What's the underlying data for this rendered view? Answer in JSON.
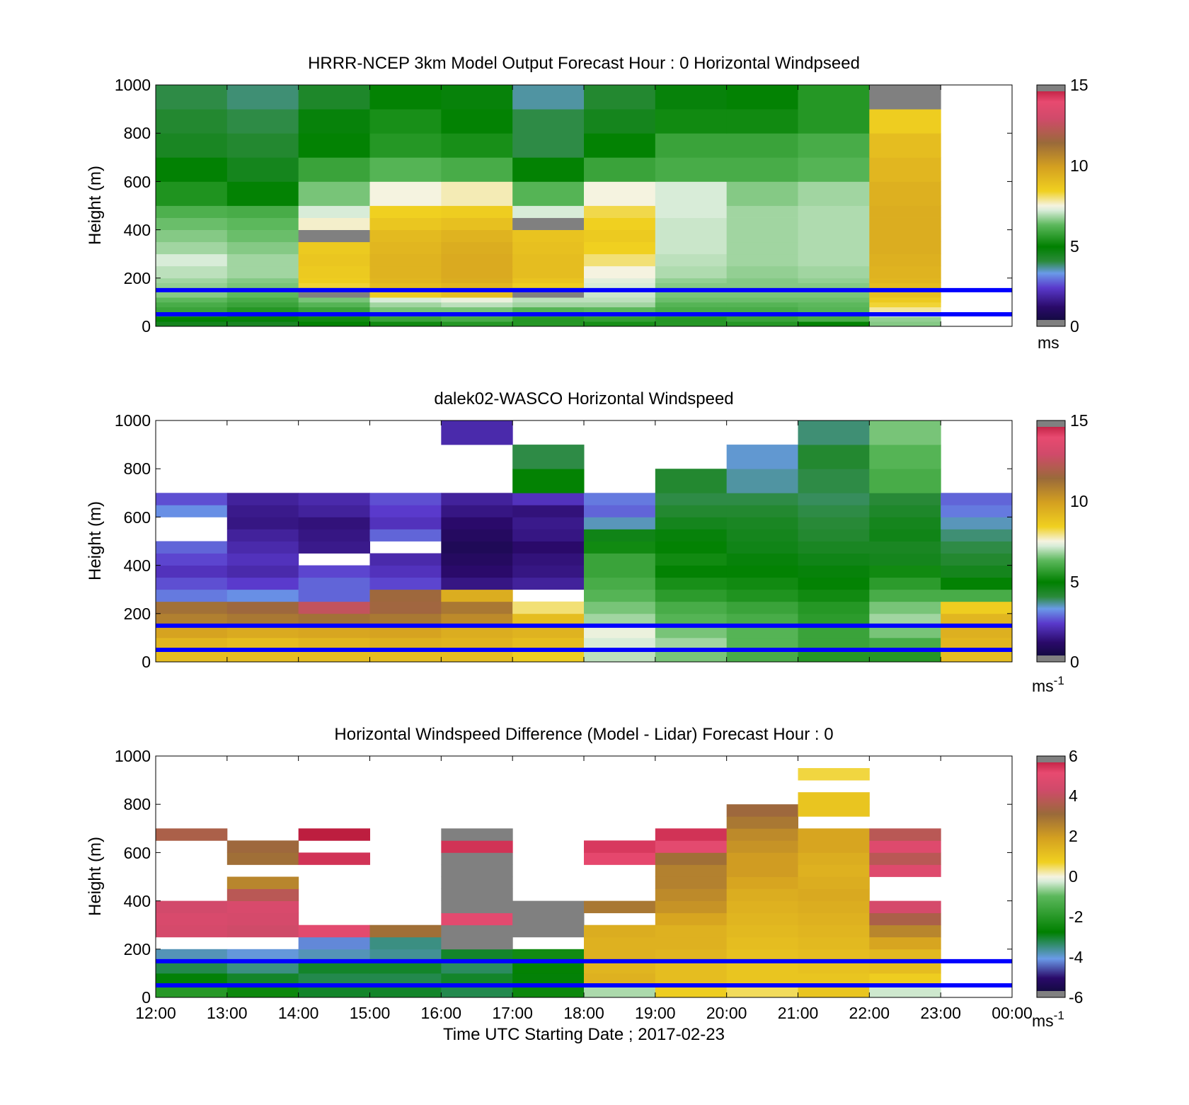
{
  "figure": {
    "panels": [
      {
        "title": "HRRR-NCEP 3km Model Output   Forecast Hour : 0 Horizontal Windpseed",
        "ylabel": "Height (m)",
        "yticks": [
          "0",
          "200",
          "400",
          "600",
          "800",
          "1000"
        ],
        "colorbar": {
          "ticks": [
            "0",
            "5",
            "10",
            "15"
          ],
          "unit": "ms",
          "unit_sup": ""
        }
      },
      {
        "title": "dalek02-WASCO  Horizontal Windspeed",
        "ylabel": "Height (m)",
        "yticks": [
          "0",
          "200",
          "400",
          "600",
          "800",
          "1000"
        ],
        "colorbar": {
          "ticks": [
            "0",
            "5",
            "10",
            "15"
          ],
          "unit": "ms",
          "unit_sup": "-1"
        }
      },
      {
        "title": "Horizontal Windspeed Difference (Model - Lidar) Forecast Hour : 0",
        "ylabel": "Height (m)",
        "yticks": [
          "0",
          "200",
          "400",
          "600",
          "800",
          "1000"
        ],
        "colorbar": {
          "ticks": [
            "-6",
            "-4",
            "-2",
            "0",
            "2",
            "4",
            "6"
          ],
          "unit": "ms",
          "unit_sup": "-1"
        }
      }
    ],
    "xticks": [
      "12:00",
      "13:00",
      "14:00",
      "15:00",
      "16:00",
      "17:00",
      "18:00",
      "19:00",
      "20:00",
      "21:00",
      "22:00",
      "23:00",
      "00:00"
    ],
    "xlabel": "Time UTC  Starting Date ; 2017-02-23",
    "colors": {
      "reference_lines": "#0000ff",
      "missing": "#808080"
    }
  },
  "chart_data": [
    {
      "type": "heatmap",
      "title": "HRRR-NCEP 3km Model Output   Forecast Hour : 0 Horizontal Windpseed",
      "xlabel": "Time UTC  Starting Date ; 2017-02-23",
      "ylabel": "Height (m)",
      "xlim": [
        "12:00",
        "00:00"
      ],
      "ylim": [
        0,
        1000
      ],
      "clim": [
        0,
        15
      ],
      "colorbar_unit": "ms",
      "reference_lines_m": [
        150,
        50
      ],
      "hours": [
        "12:00",
        "13:00",
        "14:00",
        "15:00",
        "16:00",
        "17:00",
        "18:00",
        "19:00",
        "20:00",
        "21:00",
        "22:00"
      ],
      "levels_m": [
        20,
        40,
        60,
        80,
        100,
        120,
        160,
        180,
        200,
        250,
        300,
        350,
        400,
        450,
        500,
        600,
        700,
        800,
        900,
        1000
      ],
      "values": [
        [
          4.5,
          4.4,
          5.0,
          5.2,
          5.5,
          5.5,
          5.3,
          5.5,
          5.5,
          5.0,
          6.6
        ],
        [
          5.0,
          4.8,
          5.2,
          5.8,
          6.0,
          5.5,
          5.7,
          5.5,
          5.8,
          6.0,
          6.7
        ],
        [
          5.5,
          5.2,
          5.5,
          6.0,
          6.2,
          5.8,
          6.0,
          5.8,
          5.8,
          6.0,
          7.3
        ],
        [
          5.8,
          5.5,
          5.8,
          6.5,
          6.5,
          6.2,
          6.3,
          6.0,
          6.0,
          6.2,
          7.8
        ],
        [
          6.0,
          5.8,
          6.2,
          6.8,
          7.0,
          6.8,
          6.8,
          6.2,
          6.2,
          6.3,
          8.3
        ],
        [
          6.3,
          6.0,
          6.5,
          7.2,
          7.4,
          7.0,
          7.0,
          6.4,
          6.4,
          6.4,
          8.6
        ],
        [
          6.6,
          6.3,
          15.5,
          8.6,
          9.0,
          15.5,
          7.1,
          6.5,
          6.5,
          6.5,
          8.9
        ],
        [
          6.7,
          6.5,
          8.3,
          9.0,
          9.2,
          8.5,
          7.2,
          6.6,
          6.6,
          6.6,
          9.0
        ],
        [
          6.8,
          6.6,
          8.5,
          9.2,
          9.5,
          8.8,
          7.3,
          6.7,
          6.6,
          6.7,
          9.2
        ],
        [
          7.0,
          6.8,
          8.6,
          9.3,
          9.6,
          9.0,
          7.5,
          6.9,
          6.7,
          6.8,
          9.3
        ],
        [
          7.2,
          6.8,
          8.7,
          9.3,
          9.6,
          9.0,
          8.0,
          7.0,
          6.8,
          6.9,
          9.4
        ],
        [
          6.8,
          6.6,
          8.6,
          9.2,
          9.5,
          8.9,
          8.4,
          7.1,
          6.8,
          6.9,
          9.5
        ],
        [
          6.6,
          6.4,
          15.5,
          9.1,
          9.3,
          8.8,
          8.6,
          7.1,
          6.8,
          6.9,
          9.5
        ],
        [
          6.4,
          6.3,
          7.6,
          8.7,
          8.9,
          15.5,
          8.4,
          7.1,
          6.8,
          6.9,
          9.5
        ],
        [
          6.1,
          6.0,
          7.2,
          8.4,
          8.5,
          7.2,
          8.2,
          7.2,
          6.8,
          6.9,
          9.5
        ],
        [
          5.4,
          5.0,
          6.5,
          7.5,
          7.7,
          6.2,
          7.5,
          7.2,
          6.6,
          6.8,
          9.4
        ],
        [
          4.9,
          4.5,
          5.8,
          6.2,
          6.0,
          5.0,
          5.8,
          6.0,
          6.0,
          6.2,
          9.2
        ],
        [
          4.4,
          4.2,
          5.0,
          5.5,
          5.3,
          4.0,
          5.0,
          5.8,
          5.8,
          6.0,
          9.0
        ],
        [
          4.2,
          4.0,
          4.8,
          5.3,
          5.0,
          4.0,
          4.5,
          5.2,
          5.2,
          5.5,
          8.5
        ],
        [
          4.0,
          3.8,
          4.3,
          5.0,
          4.8,
          3.6,
          4.2,
          4.8,
          5.0,
          5.5,
          15.5
        ]
      ]
    },
    {
      "type": "heatmap",
      "title": "dalek02-WASCO  Horizontal Windspeed",
      "xlabel": "Time UTC  Starting Date ; 2017-02-23",
      "ylabel": "Height (m)",
      "xlim": [
        "12:00",
        "00:00"
      ],
      "ylim": [
        0,
        1000
      ],
      "clim": [
        0,
        15
      ],
      "colorbar_unit": "ms-1",
      "reference_lines_m": [
        150,
        50
      ],
      "hours": [
        "12:00",
        "13:00",
        "14:00",
        "15:00",
        "16:00",
        "17:00",
        "18:00",
        "19:00",
        "20:00",
        "21:00",
        "22:00",
        "23:00"
      ],
      "levels_m": [
        50,
        100,
        150,
        200,
        250,
        300,
        350,
        400,
        450,
        500,
        550,
        600,
        650,
        700,
        800,
        900,
        1000
      ],
      "values": [
        [
          9.0,
          9.0,
          9.0,
          9.0,
          9.0,
          8.5,
          7.0,
          6.5,
          6.0,
          5.5,
          5.5,
          9.0
        ],
        [
          9.2,
          9.0,
          9.2,
          9.4,
          9.3,
          9.0,
          7.2,
          6.8,
          6.2,
          5.8,
          6.0,
          9.2
        ],
        [
          9.8,
          9.6,
          9.7,
          9.8,
          9.5,
          9.3,
          7.4,
          6.5,
          6.2,
          5.8,
          6.5,
          9.4
        ],
        [
          10.8,
          11.0,
          11.2,
          11.0,
          10.5,
          9.0,
          6.8,
          6.2,
          6.0,
          5.6,
          6.8,
          9.2
        ],
        [
          11.2,
          11.5,
          12.5,
          11.6,
          11.0,
          8.0,
          6.5,
          6.0,
          5.8,
          5.5,
          6.5,
          8.5
        ],
        [
          3.0,
          3.2,
          2.8,
          11.5,
          9.5,
          null,
          6.2,
          5.6,
          5.4,
          5.2,
          6.0,
          6.0
        ],
        [
          2.6,
          2.4,
          2.8,
          2.5,
          1.5,
          1.8,
          6.0,
          5.3,
          5.2,
          5.0,
          5.6,
          5.0
        ],
        [
          2.2,
          2.0,
          2.5,
          2.2,
          1.2,
          1.5,
          5.8,
          5.0,
          5.0,
          4.8,
          5.2,
          4.5
        ],
        [
          2.5,
          2.2,
          null,
          2.0,
          1.0,
          1.4,
          5.8,
          5.2,
          4.8,
          4.6,
          4.5,
          4.2
        ],
        [
          2.8,
          2.0,
          1.6,
          null,
          0.8,
          1.2,
          5.2,
          5.0,
          4.6,
          4.4,
          4.4,
          4.0
        ],
        [
          null,
          1.8,
          1.5,
          2.8,
          1.0,
          1.5,
          4.6,
          4.8,
          4.5,
          4.2,
          4.6,
          3.8
        ],
        [
          null,
          1.5,
          1.4,
          2.2,
          1.2,
          1.6,
          3.5,
          4.5,
          4.4,
          4.1,
          4.5,
          3.5
        ],
        [
          3.2,
          1.6,
          1.8,
          2.4,
          1.5,
          1.4,
          2.8,
          4.2,
          4.2,
          4.0,
          4.3,
          3.0
        ],
        [
          2.6,
          1.8,
          2.0,
          2.6,
          1.8,
          2.2,
          3.0,
          4.0,
          4.0,
          3.9,
          4.1,
          2.8
        ],
        [
          null,
          null,
          null,
          null,
          null,
          5.0,
          null,
          4.2,
          3.6,
          4.0,
          6.0,
          null
        ],
        [
          null,
          null,
          null,
          null,
          null,
          4.0,
          null,
          null,
          3.4,
          4.2,
          6.2,
          null
        ],
        [
          null,
          null,
          null,
          null,
          2.0,
          null,
          null,
          null,
          null,
          3.8,
          6.5,
          null
        ]
      ]
    },
    {
      "type": "heatmap",
      "title": "Horizontal Windspeed Difference (Model - Lidar) Forecast Hour : 0",
      "xlabel": "Time UTC  Starting Date ; 2017-02-23",
      "ylabel": "Height (m)",
      "xlim": [
        "12:00",
        "00:00"
      ],
      "ylim": [
        0,
        1000
      ],
      "clim": [
        -6,
        6
      ],
      "colorbar_unit": "ms-1",
      "reference_lines_m": [
        150,
        50
      ],
      "hours": [
        "12:00",
        "13:00",
        "14:00",
        "15:00",
        "16:00",
        "17:00",
        "18:00",
        "19:00",
        "20:00",
        "21:00",
        "22:00"
      ],
      "levels_m": [
        50,
        100,
        150,
        200,
        250,
        300,
        350,
        400,
        450,
        500,
        550,
        600,
        650,
        700,
        750,
        800,
        850,
        900,
        950
      ],
      "values": [
        [
          -2.0,
          -2.5,
          -3.0,
          -3.0,
          -3.2,
          -2.5,
          -0.5,
          0.8,
          0.5,
          1.0,
          -0.3
        ],
        [
          -2.8,
          -3.0,
          -3.2,
          -3.2,
          -3.0,
          -2.8,
          1.5,
          1.2,
          1.0,
          1.0,
          0.8
        ],
        [
          -3.2,
          -3.5,
          -3.0,
          -3.0,
          -3.3,
          -2.7,
          1.4,
          1.2,
          1.0,
          1.1,
          1.2
        ],
        [
          -3.8,
          -4.0,
          -3.8,
          -3.6,
          -3.0,
          -2.4,
          1.5,
          1.4,
          1.1,
          1.2,
          1.3
        ],
        [
          null,
          null,
          -4.2,
          -3.5,
          6.5,
          null,
          1.5,
          1.5,
          1.2,
          1.3,
          1.8
        ],
        [
          4.5,
          4.3,
          5.0,
          3.0,
          6.5,
          6.5,
          1.6,
          1.5,
          1.3,
          1.4,
          2.5
        ],
        [
          4.6,
          4.5,
          null,
          null,
          5.0,
          6.5,
          null,
          1.8,
          1.4,
          1.5,
          3.5
        ],
        [
          4.4,
          4.6,
          null,
          null,
          6.5,
          6.5,
          2.8,
          2.2,
          1.5,
          1.6,
          4.5
        ],
        [
          null,
          3.8,
          null,
          null,
          6.5,
          null,
          null,
          2.4,
          1.6,
          1.7,
          null
        ],
        [
          null,
          2.5,
          null,
          null,
          6.5,
          null,
          null,
          2.6,
          1.8,
          1.6,
          null
        ],
        [
          null,
          null,
          null,
          null,
          6.5,
          null,
          null,
          2.6,
          2.0,
          1.5,
          4.8
        ],
        [
          null,
          3.0,
          5.5,
          null,
          6.5,
          null,
          5.2,
          3.0,
          2.0,
          1.6,
          3.8
        ],
        [
          null,
          3.2,
          null,
          null,
          5.5,
          null,
          5.4,
          5.0,
          2.2,
          1.8,
          4.8
        ],
        [
          3.5,
          null,
          5.8,
          null,
          6.5,
          null,
          null,
          5.5,
          2.4,
          1.8,
          3.8
        ],
        [
          null,
          null,
          null,
          null,
          null,
          null,
          null,
          null,
          2.8,
          null,
          null
        ],
        [
          null,
          null,
          null,
          null,
          null,
          null,
          null,
          null,
          3.2,
          1.0,
          null
        ],
        [
          null,
          null,
          null,
          null,
          null,
          null,
          null,
          null,
          null,
          1.0,
          null
        ],
        [
          null,
          null,
          null,
          null,
          null,
          null,
          null,
          null,
          null,
          null,
          null
        ],
        [
          null,
          null,
          null,
          null,
          null,
          null,
          null,
          null,
          null,
          0.6,
          null
        ]
      ]
    }
  ]
}
